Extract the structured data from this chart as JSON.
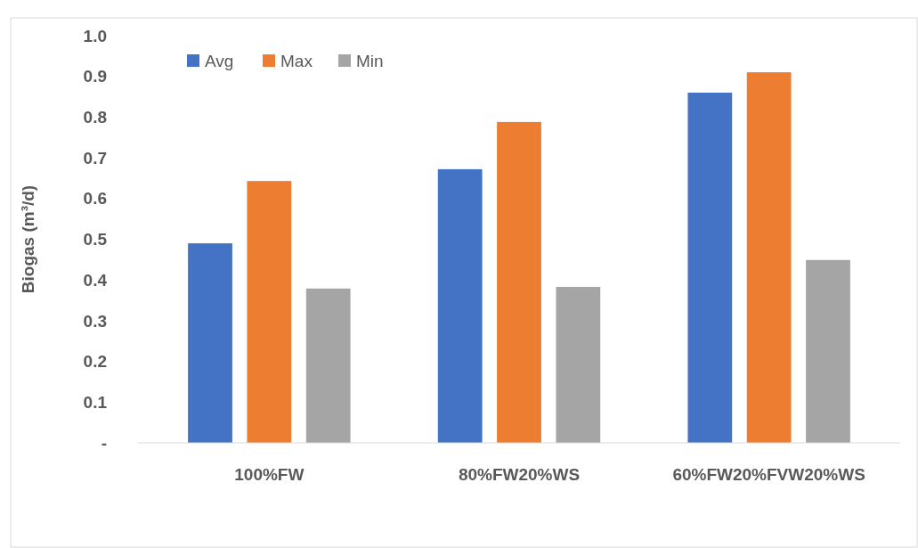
{
  "chart_data": {
    "type": "bar",
    "ylabel": "Biogas (m³/d)",
    "categories": [
      "100%FW",
      "80%FW20%WS",
      "60%FW20%FVW20%WS"
    ],
    "series": [
      {
        "name": "Avg",
        "color": "#4472c4",
        "values": [
          0.49,
          0.672,
          0.86
        ]
      },
      {
        "name": "Max",
        "color": "#ed7d31",
        "values": [
          0.643,
          0.788,
          0.91
        ]
      },
      {
        "name": "Min",
        "color": "#a5a5a5",
        "values": [
          0.379,
          0.383,
          0.449
        ]
      }
    ],
    "ylim": [
      0,
      1
    ],
    "yticks": [
      {
        "value": 0,
        "label": "-"
      },
      0.1,
      0.2,
      0.3,
      0.4,
      0.5,
      0.6,
      0.7,
      0.8,
      0.9,
      {
        "value": 1,
        "label": "1.0"
      }
    ],
    "grid": false,
    "legend": "top left"
  }
}
